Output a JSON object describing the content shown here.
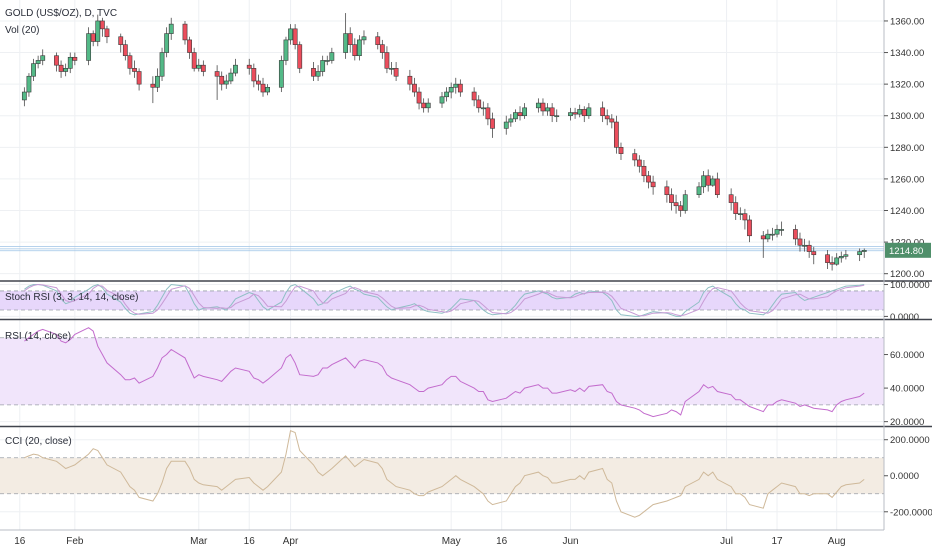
{
  "chart_data": [
    {
      "type": "candlestick",
      "title": "GOLD (US$/OZ), D, TVC",
      "volume_label": "Vol (20)",
      "y_ticks": [
        "1360.00",
        "1340.00",
        "1320.00",
        "1300.00",
        "1280.00",
        "1260.00",
        "1240.00",
        "1220.00",
        "1200.00"
      ],
      "y_tick_values": [
        1360,
        1340,
        1320,
        1300,
        1280,
        1260,
        1240,
        1220,
        1200
      ],
      "ylim": [
        1196,
        1372
      ],
      "last_price": 1214.8,
      "last_price_label": "1214.80",
      "x_ticks": [
        "16",
        "Feb",
        "Mar",
        "16",
        "Apr",
        "May",
        "16",
        "Jun",
        "Jul",
        "17",
        "Aug"
      ],
      "x_tick_days": [
        -1,
        11,
        38,
        49,
        58,
        93,
        104,
        119,
        153,
        164,
        177
      ],
      "days": [
        0,
        1,
        2,
        3,
        4,
        7,
        8,
        9,
        10,
        11,
        14,
        15,
        16,
        17,
        18,
        21,
        22,
        23,
        24,
        25,
        28,
        29,
        30,
        31,
        32,
        35,
        36,
        37,
        38,
        39,
        42,
        43,
        44,
        45,
        46,
        49,
        50,
        51,
        52,
        53,
        56,
        57,
        58,
        59,
        60,
        63,
        64,
        65,
        66,
        67,
        70,
        71,
        72,
        73,
        74,
        77,
        78,
        79,
        80,
        81,
        84,
        85,
        86,
        87,
        88,
        91,
        92,
        93,
        94,
        95,
        98,
        99,
        100,
        101,
        102,
        105,
        106,
        107,
        108,
        109,
        112,
        113,
        114,
        115,
        116,
        119,
        120,
        121,
        122,
        123,
        126,
        127,
        128,
        129,
        130,
        133,
        134,
        135,
        136,
        137,
        140,
        141,
        142,
        143,
        144,
        147,
        148,
        149,
        150,
        151,
        154,
        155,
        156,
        157,
        158,
        161,
        162,
        163,
        164,
        165,
        168,
        169,
        170,
        171,
        172,
        175,
        176,
        177,
        178,
        179,
        182,
        183
      ],
      "open": [
        1310,
        1315,
        1325,
        1333,
        1335,
        1338,
        1332,
        1328,
        1330,
        1337,
        1335,
        1352,
        1347,
        1360,
        1355,
        1350,
        1345,
        1338,
        1330,
        1328,
        1320,
        1318,
        1325,
        1340,
        1352,
        1358,
        1348,
        1340,
        1330,
        1332,
        1328,
        1325,
        1320,
        1322,
        1327,
        1332,
        1330,
        1322,
        1320,
        1315,
        1318,
        1335,
        1348,
        1355,
        1345,
        1330,
        1325,
        1328,
        1335,
        1335,
        1340,
        1352,
        1345,
        1338,
        1348,
        1350,
        1345,
        1340,
        1330,
        1330,
        1325,
        1320,
        1315,
        1308,
        1305,
        1308,
        1312,
        1315,
        1318,
        1320,
        1315,
        1310,
        1305,
        1305,
        1298,
        1292,
        1296,
        1298,
        1302,
        1300,
        1305,
        1308,
        1303,
        1305,
        1300,
        1300,
        1302,
        1301,
        1304,
        1300,
        1305,
        1300,
        1298,
        1296,
        1280,
        1276,
        1272,
        1268,
        1262,
        1258,
        1255,
        1250,
        1245,
        1243,
        1240,
        1250,
        1255,
        1262,
        1256,
        1260,
        1250,
        1245,
        1238,
        1238,
        1234,
        1224,
        1222,
        1225,
        1225,
        1228,
        1228,
        1222,
        1218,
        1218,
        1214,
        1212,
        1207,
        1206,
        1210,
        1211,
        1212,
        1214
      ],
      "close": [
        1315,
        1325,
        1333,
        1335,
        1338,
        1332,
        1328,
        1330,
        1337,
        1335,
        1352,
        1347,
        1360,
        1355,
        1350,
        1345,
        1338,
        1330,
        1328,
        1320,
        1318,
        1325,
        1340,
        1352,
        1358,
        1348,
        1340,
        1330,
        1332,
        1328,
        1325,
        1320,
        1322,
        1327,
        1332,
        1330,
        1322,
        1320,
        1315,
        1318,
        1335,
        1348,
        1355,
        1345,
        1330,
        1325,
        1328,
        1335,
        1335,
        1340,
        1352,
        1345,
        1338,
        1348,
        1350,
        1345,
        1340,
        1330,
        1330,
        1325,
        1320,
        1315,
        1308,
        1305,
        1308,
        1312,
        1315,
        1318,
        1320,
        1315,
        1310,
        1305,
        1305,
        1298,
        1292,
        1296,
        1298,
        1302,
        1300,
        1305,
        1308,
        1303,
        1305,
        1300,
        1300,
        1302,
        1301,
        1304,
        1300,
        1305,
        1300,
        1298,
        1296,
        1280,
        1276,
        1272,
        1268,
        1262,
        1258,
        1255,
        1250,
        1245,
        1243,
        1240,
        1250,
        1255,
        1262,
        1256,
        1260,
        1250,
        1245,
        1238,
        1238,
        1234,
        1224,
        1222,
        1225,
        1225,
        1228,
        1228,
        1222,
        1218,
        1218,
        1214,
        1212,
        1207,
        1206,
        1210,
        1211,
        1212,
        1214,
        1214.8
      ],
      "high": [
        1318,
        1327,
        1336,
        1338,
        1342,
        1340,
        1335,
        1333,
        1340,
        1340,
        1356,
        1354,
        1364,
        1362,
        1357,
        1352,
        1348,
        1340,
        1335,
        1330,
        1325,
        1330,
        1343,
        1356,
        1362,
        1360,
        1350,
        1343,
        1336,
        1335,
        1332,
        1328,
        1326,
        1330,
        1336,
        1336,
        1333,
        1326,
        1324,
        1320,
        1338,
        1350,
        1358,
        1358,
        1347,
        1334,
        1332,
        1338,
        1338,
        1343,
        1365,
        1356,
        1349,
        1351,
        1354,
        1353,
        1348,
        1344,
        1334,
        1334,
        1329,
        1324,
        1318,
        1311,
        1311,
        1315,
        1318,
        1321,
        1324,
        1323,
        1318,
        1313,
        1309,
        1308,
        1302,
        1300,
        1301,
        1304,
        1306,
        1308,
        1311,
        1311,
        1308,
        1308,
        1304,
        1305,
        1305,
        1307,
        1306,
        1308,
        1309,
        1304,
        1301,
        1300,
        1283,
        1279,
        1275,
        1272,
        1265,
        1262,
        1259,
        1254,
        1250,
        1246,
        1253,
        1258,
        1265,
        1266,
        1262,
        1264,
        1254,
        1249,
        1242,
        1241,
        1237,
        1227,
        1228,
        1229,
        1231,
        1233,
        1231,
        1226,
        1222,
        1221,
        1217,
        1215,
        1211,
        1213,
        1214,
        1215,
        1216,
        1216
      ],
      "low": [
        1306,
        1312,
        1322,
        1330,
        1332,
        1328,
        1324,
        1325,
        1327,
        1332,
        1332,
        1344,
        1344,
        1350,
        1346,
        1340,
        1335,
        1326,
        1324,
        1316,
        1308,
        1315,
        1322,
        1337,
        1348,
        1345,
        1336,
        1328,
        1328,
        1325,
        1310,
        1316,
        1317,
        1320,
        1325,
        1326,
        1318,
        1316,
        1312,
        1313,
        1315,
        1332,
        1345,
        1342,
        1327,
        1322,
        1322,
        1325,
        1332,
        1333,
        1336,
        1340,
        1335,
        1335,
        1345,
        1342,
        1336,
        1327,
        1326,
        1322,
        1316,
        1312,
        1304,
        1302,
        1302,
        1305,
        1309,
        1311,
        1314,
        1312,
        1306,
        1302,
        1300,
        1294,
        1286,
        1288,
        1293,
        1296,
        1297,
        1298,
        1302,
        1300,
        1300,
        1296,
        1296,
        1297,
        1298,
        1299,
        1296,
        1298,
        1296,
        1294,
        1292,
        1276,
        1272,
        1268,
        1264,
        1258,
        1254,
        1250,
        1245,
        1240,
        1238,
        1236,
        1238,
        1248,
        1251,
        1252,
        1255,
        1248,
        1240,
        1234,
        1234,
        1228,
        1220,
        1210,
        1220,
        1221,
        1223,
        1224,
        1218,
        1214,
        1214,
        1210,
        1206,
        1203,
        1202,
        1205,
        1207,
        1209,
        1208,
        1210
      ]
    },
    {
      "type": "line",
      "title": "Stoch RSI (3, 3, 14, 14, close)",
      "y_ticks": [
        "100.0000",
        "0.0000"
      ],
      "y_tick_values": [
        100,
        0
      ],
      "ylim": [
        -5,
        108
      ],
      "bands": [
        20,
        80
      ],
      "series": [
        {
          "values": [
            85,
            95,
            100,
            100,
            98,
            80,
            55,
            40,
            45,
            60,
            85,
            95,
            100,
            90,
            70,
            45,
            25,
            10,
            5,
            8,
            15,
            35,
            60,
            85,
            100,
            95,
            70,
            40,
            20,
            25,
            30,
            25,
            20,
            35,
            55,
            75,
            70,
            50,
            30,
            20,
            45,
            75,
            95,
            100,
            90,
            55,
            35,
            40,
            55,
            70,
            90,
            95,
            85,
            80,
            70,
            60,
            45,
            30,
            20,
            25,
            35,
            40,
            30,
            20,
            15,
            10,
            15,
            25,
            40,
            55,
            50,
            35,
            20,
            10,
            5,
            10,
            20,
            35,
            55,
            70,
            80,
            75,
            70,
            60,
            55,
            60,
            70,
            75,
            70,
            80,
            75,
            65,
            50,
            20,
            5,
            0,
            0,
            5,
            10,
            15,
            10,
            5,
            0,
            0,
            15,
            45,
            75,
            90,
            95,
            85,
            60,
            40,
            25,
            20,
            10,
            5,
            15,
            35,
            55,
            70,
            75,
            60,
            50,
            55,
            60,
            75,
            80,
            85,
            90,
            95,
            98,
            100
          ]
        },
        {
          "values": [
            80,
            90,
            97,
            100,
            99,
            90,
            70,
            50,
            45,
            50,
            70,
            88,
            97,
            95,
            82,
            60,
            38,
            20,
            10,
            7,
            10,
            20,
            40,
            62,
            85,
            96,
            88,
            65,
            42,
            28,
            25,
            27,
            25,
            28,
            40,
            58,
            70,
            65,
            50,
            32,
            30,
            48,
            72,
            92,
            95,
            80,
            58,
            42,
            42,
            55,
            72,
            88,
            90,
            85,
            78,
            68,
            58,
            45,
            32,
            25,
            27,
            33,
            35,
            30,
            22,
            15,
            13,
            17,
            27,
            40,
            50,
            47,
            35,
            22,
            12,
            8,
            12,
            22,
            37,
            55,
            70,
            77,
            75,
            68,
            62,
            58,
            62,
            68,
            72,
            75,
            76,
            73,
            63,
            45,
            25,
            8,
            2,
            2,
            6,
            10,
            12,
            10,
            5,
            2,
            5,
            22,
            48,
            72,
            87,
            90,
            80,
            62,
            42,
            28,
            18,
            12,
            10,
            18,
            35,
            55,
            68,
            70,
            62,
            55,
            55,
            62,
            72,
            80,
            85,
            90,
            95,
            98
          ]
        }
      ]
    },
    {
      "type": "line",
      "title": "RSI (14, close)",
      "y_ticks": [
        "60.0000",
        "40.0000",
        "20.0000"
      ],
      "y_tick_values": [
        60,
        40,
        20
      ],
      "ylim": [
        18,
        80
      ],
      "bands": [
        30,
        70
      ],
      "series": [
        {
          "values": [
            68,
            70,
            72,
            74,
            75,
            72,
            68,
            67,
            69,
            72,
            76,
            74,
            65,
            60,
            55,
            48,
            45,
            45,
            46,
            43,
            47,
            52,
            58,
            60,
            63,
            58,
            52,
            46,
            48,
            47,
            45,
            44,
            47,
            50,
            52,
            50,
            46,
            45,
            43,
            45,
            52,
            58,
            60,
            55,
            48,
            47,
            48,
            52,
            52,
            54,
            58,
            55,
            52,
            56,
            57,
            55,
            53,
            48,
            46,
            45,
            42,
            40,
            38,
            38,
            40,
            42,
            45,
            47,
            47,
            44,
            40,
            38,
            38,
            33,
            32,
            34,
            36,
            38,
            37,
            40,
            42,
            40,
            40,
            37,
            37,
            39,
            38,
            40,
            38,
            41,
            42,
            38,
            37,
            32,
            30,
            28,
            27,
            25,
            24,
            23,
            25,
            27,
            26,
            24,
            32,
            38,
            42,
            40,
            41,
            38,
            36,
            33,
            33,
            31,
            29,
            26,
            30,
            30,
            32,
            33,
            31,
            29,
            30,
            29,
            28,
            27,
            26,
            30,
            32,
            33,
            35,
            37
          ]
        }
      ]
    },
    {
      "type": "line",
      "title": "CCI (20, close)",
      "y_ticks": [
        "200.0000",
        "0.0000",
        "-200.0000"
      ],
      "y_tick_values": [
        200,
        0,
        -200
      ],
      "ylim": [
        -290,
        265
      ],
      "bands": [
        -100,
        100
      ],
      "series": [
        {
          "values": [
            100,
            110,
            120,
            115,
            100,
            80,
            60,
            40,
            50,
            60,
            120,
            150,
            140,
            100,
            60,
            20,
            -20,
            -60,
            -80,
            -120,
            -140,
            -100,
            -40,
            40,
            80,
            80,
            40,
            -20,
            -40,
            -50,
            -60,
            -80,
            -60,
            -40,
            -20,
            -10,
            -40,
            -60,
            -80,
            -60,
            20,
            120,
            250,
            240,
            140,
            60,
            20,
            0,
            20,
            40,
            110,
            80,
            50,
            70,
            90,
            70,
            40,
            -20,
            -40,
            -60,
            -80,
            -100,
            -110,
            -110,
            -90,
            -60,
            -40,
            -20,
            0,
            -20,
            -60,
            -80,
            -100,
            -140,
            -160,
            -140,
            -100,
            -60,
            -40,
            0,
            20,
            0,
            -10,
            -40,
            -40,
            -20,
            -20,
            0,
            -20,
            20,
            40,
            -20,
            -40,
            -140,
            -200,
            -230,
            -220,
            -200,
            -180,
            -160,
            -140,
            -130,
            -120,
            -110,
            -60,
            -20,
            20,
            0,
            20,
            -20,
            -60,
            -100,
            -100,
            -120,
            -160,
            -180,
            -100,
            -80,
            -60,
            -40,
            -60,
            -100,
            -100,
            -110,
            -100,
            -100,
            -120,
            -90,
            -60,
            -50,
            -40,
            -20,
            -10,
            -20
          ]
        }
      ]
    }
  ]
}
